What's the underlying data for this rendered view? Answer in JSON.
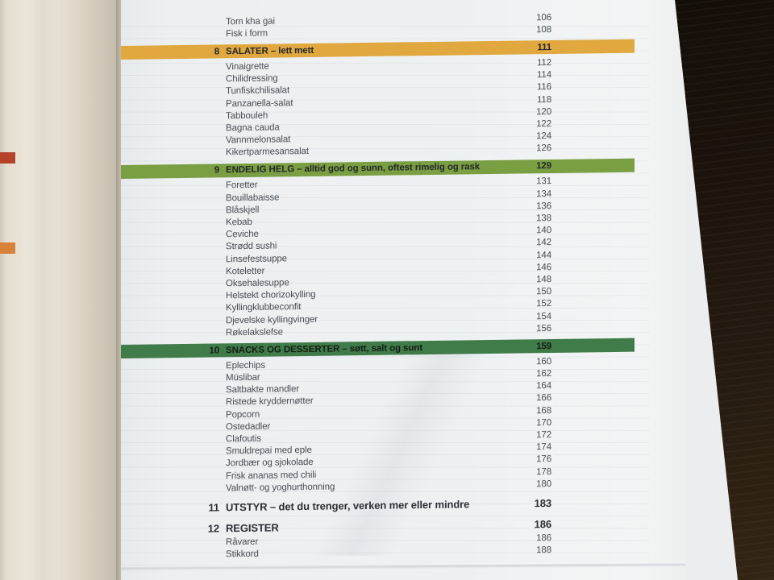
{
  "book": {
    "description_title": "Table of contents page",
    "toc_rows": [
      {
        "t": "item",
        "num": "",
        "label": "Tom kha gai",
        "page": "106"
      },
      {
        "t": "item",
        "num": "",
        "label": "Fisk i form",
        "page": "108"
      },
      {
        "t": "band-yellow",
        "num": "8",
        "label": "SALATER – lett mett",
        "page": "111"
      },
      {
        "t": "item",
        "num": "",
        "label": "Vinaigrette",
        "page": "112"
      },
      {
        "t": "item",
        "num": "",
        "label": "Chilidressing",
        "page": "114"
      },
      {
        "t": "item",
        "num": "",
        "label": "Tunfiskchilisalat",
        "page": "116"
      },
      {
        "t": "item",
        "num": "",
        "label": "Panzanella-salat",
        "page": "118"
      },
      {
        "t": "item",
        "num": "",
        "label": "Tabbouleh",
        "page": "120"
      },
      {
        "t": "item",
        "num": "",
        "label": "Bagna cauda",
        "page": "122"
      },
      {
        "t": "item",
        "num": "",
        "label": "Vannmelonsalat",
        "page": "124"
      },
      {
        "t": "item",
        "num": "",
        "label": "Kikertparmesansalat",
        "page": "126"
      },
      {
        "t": "band-green",
        "num": "9",
        "label": "ENDELIG HELG – alltid god og sunn, oftest rimelig og rask",
        "page": "129"
      },
      {
        "t": "item",
        "num": "",
        "label": "Foretter",
        "page": "131"
      },
      {
        "t": "item",
        "num": "",
        "label": "Bouillabaisse",
        "page": "134"
      },
      {
        "t": "item",
        "num": "",
        "label": "Blåskjell",
        "page": "136"
      },
      {
        "t": "item",
        "num": "",
        "label": "Kebab",
        "page": "138"
      },
      {
        "t": "item",
        "num": "",
        "label": "Ceviche",
        "page": "140"
      },
      {
        "t": "item",
        "num": "",
        "label": "Strødd sushi",
        "page": "142"
      },
      {
        "t": "item",
        "num": "",
        "label": "Linsefestsuppe",
        "page": "144"
      },
      {
        "t": "item",
        "num": "",
        "label": "Koteletter",
        "page": "146"
      },
      {
        "t": "item",
        "num": "",
        "label": "Oksehalesuppe",
        "page": "148"
      },
      {
        "t": "item",
        "num": "",
        "label": "Helstekt chorizokylling",
        "page": "150"
      },
      {
        "t": "item",
        "num": "",
        "label": "Kyllingklubbeconfit",
        "page": "152"
      },
      {
        "t": "item",
        "num": "",
        "label": "Djevelske kyllingvinger",
        "page": "154"
      },
      {
        "t": "item",
        "num": "",
        "label": "Røkelakslefse",
        "page": "156"
      },
      {
        "t": "band-dgreen",
        "num": "10",
        "label": "SNACKS OG DESSERTER – søtt, salt og sunt",
        "page": "159"
      },
      {
        "t": "item",
        "num": "",
        "label": "Eplechips",
        "page": "160"
      },
      {
        "t": "item",
        "num": "",
        "label": "Müslibar",
        "page": "162"
      },
      {
        "t": "item",
        "num": "",
        "label": "Saltbakte mandler",
        "page": "164"
      },
      {
        "t": "item",
        "num": "",
        "label": "Ristede kryddernøtter",
        "page": "166"
      },
      {
        "t": "item",
        "num": "",
        "label": "Popcorn",
        "page": "168"
      },
      {
        "t": "item",
        "num": "",
        "label": "Ostedadler",
        "page": "170"
      },
      {
        "t": "item",
        "num": "",
        "label": "Clafoutis",
        "page": "172"
      },
      {
        "t": "item",
        "num": "",
        "label": "Smuldrepai med eple",
        "page": "174"
      },
      {
        "t": "item",
        "num": "",
        "label": "Jordbær og sjokolade",
        "page": "176"
      },
      {
        "t": "item",
        "num": "",
        "label": "Frisk ananas med chili",
        "page": "178"
      },
      {
        "t": "item",
        "num": "",
        "label": "Valnøtt- og yoghurthonning",
        "page": "180"
      },
      {
        "t": "ch-plain",
        "num": "11",
        "label": "UTSTYR – det du trenger, verken mer eller mindre",
        "page": "183"
      },
      {
        "t": "ch-plain",
        "num": "12",
        "label": "REGISTER",
        "page": "186"
      },
      {
        "t": "item",
        "num": "",
        "label": "Råvarer",
        "page": "186"
      },
      {
        "t": "item",
        "num": "",
        "label": "Stikkord",
        "page": "188"
      }
    ],
    "colors": {
      "band_yellow": "#e0a83e",
      "band_green": "#7a9e42",
      "band_dark_green": "#3f7c49",
      "tab_red": "#b5422b",
      "tab_orange": "#d8823a"
    }
  }
}
